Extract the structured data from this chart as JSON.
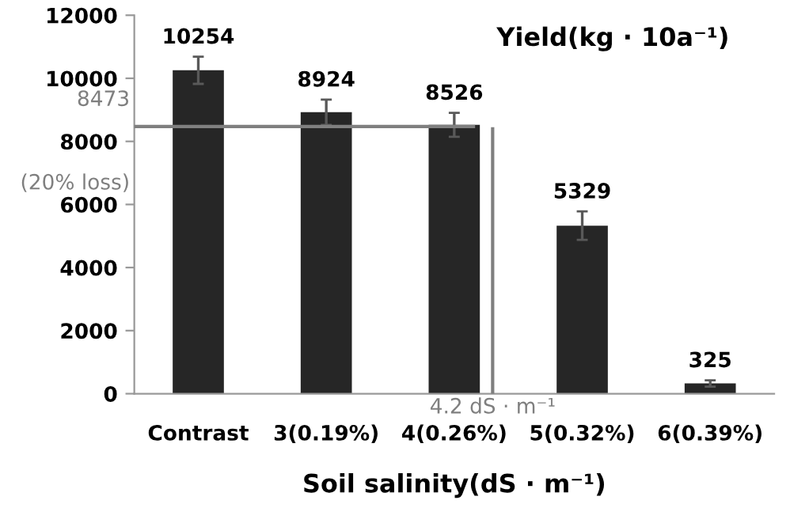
{
  "chart_data": {
    "type": "bar",
    "title": "Yield(kg · 10a⁻¹)",
    "xlabel": "Soil salinity(dS · m⁻¹)",
    "categories": [
      "Contrast",
      "3(0.19%)",
      "4(0.26%)",
      "5(0.32%)",
      "6(0.39%)"
    ],
    "values": [
      10254,
      8924,
      8526,
      5329,
      325
    ],
    "errors": [
      430,
      400,
      380,
      450,
      100
    ],
    "color": "#262626",
    "ylim": [
      0,
      12000
    ],
    "yticks": [
      0,
      2000,
      4000,
      6000,
      8000,
      10000,
      12000
    ],
    "data_labels": true,
    "grid": false,
    "annotations": [
      "4.2 dS · m⁻¹"
    ],
    "ref_lines": [
      {
        "axis": "y",
        "value": 8473,
        "label": "8473\n(20% loss)",
        "color": "#7f7f7f"
      }
    ]
  }
}
